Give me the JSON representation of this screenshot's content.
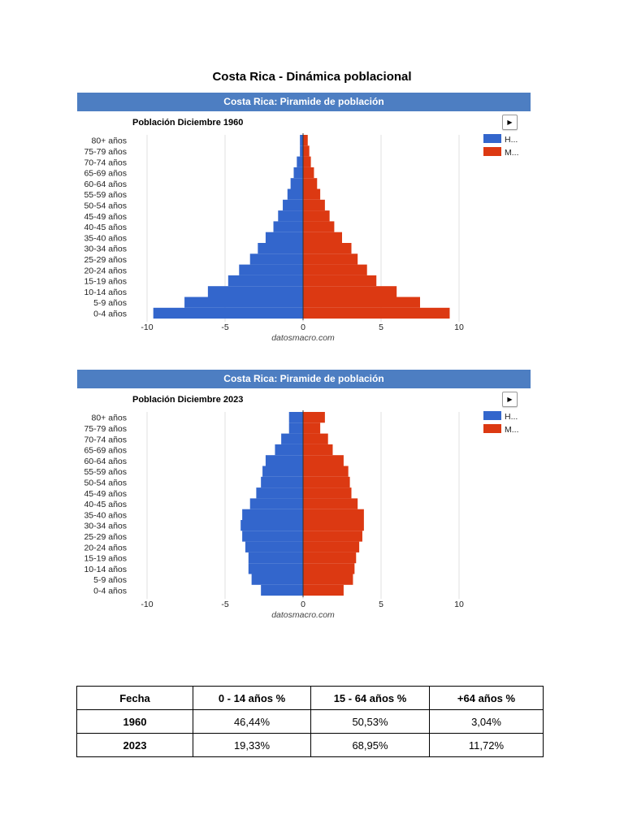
{
  "page": {
    "title": "Costa Rica - Dinámica poblacional"
  },
  "chart_data": [
    {
      "type": "bar",
      "orientation": "horizontal-pyramid",
      "header": "Costa Rica: Piramide de población",
      "title": "Población Diciembre 1960",
      "watermark": "datosmacro.com",
      "categories": [
        "80+ años",
        "75-79 años",
        "70-74 años",
        "65-69 años",
        "60-64 años",
        "55-59 años",
        "50-54 años",
        "45-49 años",
        "40-45 años",
        "35-40 años",
        "30-34 años",
        "25-29 años",
        "20-24 años",
        "15-19 años",
        "10-14 años",
        "5-9 años",
        "0-4 años"
      ],
      "series": [
        {
          "name": "H...",
          "color": "#3366cc",
          "values": [
            -0.2,
            -0.2,
            -0.4,
            -0.6,
            -0.8,
            -1.0,
            -1.3,
            -1.6,
            -1.9,
            -2.4,
            -2.9,
            -3.4,
            -4.1,
            -4.8,
            -6.1,
            -7.6,
            -9.6
          ]
        },
        {
          "name": "M...",
          "color": "#dc3912",
          "values": [
            0.3,
            0.4,
            0.5,
            0.7,
            0.9,
            1.1,
            1.4,
            1.7,
            2.0,
            2.5,
            3.1,
            3.5,
            4.1,
            4.7,
            6.0,
            7.5,
            9.4
          ]
        }
      ],
      "xlim": [
        -10,
        10
      ],
      "xticks": [
        "-10",
        "-5",
        "0",
        "5",
        "10"
      ],
      "legend": "right"
    },
    {
      "type": "bar",
      "orientation": "horizontal-pyramid",
      "header": "Costa Rica: Piramide de población",
      "title": "Población Diciembre 2023",
      "watermark": "datosmacro.com",
      "categories": [
        "80+ años",
        "75-79 años",
        "70-74 años",
        "65-69 años",
        "60-64 años",
        "55-59 años",
        "50-54 años",
        "45-49 años",
        "40-45 años",
        "35-40 años",
        "30-34 años",
        "25-29 años",
        "20-24 años",
        "15-19 años",
        "10-14 años",
        "5-9 años",
        "0-4 años"
      ],
      "series": [
        {
          "name": "H...",
          "color": "#3366cc",
          "values": [
            -0.9,
            -0.9,
            -1.4,
            -1.8,
            -2.4,
            -2.6,
            -2.7,
            -3.0,
            -3.4,
            -3.9,
            -4.0,
            -3.9,
            -3.7,
            -3.5,
            -3.5,
            -3.3,
            -2.7
          ]
        },
        {
          "name": "M...",
          "color": "#dc3912",
          "values": [
            1.4,
            1.1,
            1.6,
            1.9,
            2.6,
            2.9,
            3.0,
            3.1,
            3.5,
            3.9,
            3.9,
            3.8,
            3.6,
            3.4,
            3.3,
            3.2,
            2.6
          ]
        }
      ],
      "xlim": [
        -10,
        10
      ],
      "xticks": [
        "-10",
        "-5",
        "0",
        "5",
        "10"
      ],
      "legend": "right"
    }
  ],
  "table": {
    "headers": [
      "Fecha",
      "0 - 14 años %",
      "15 - 64 años %",
      "+64 años %"
    ],
    "rows": [
      [
        "1960",
        "46,44%",
        "50,53%",
        "3,04%"
      ],
      [
        "2023",
        "19,33%",
        "68,95%",
        "11,72%"
      ]
    ]
  },
  "controls": {
    "play_icon": "play-icon"
  }
}
